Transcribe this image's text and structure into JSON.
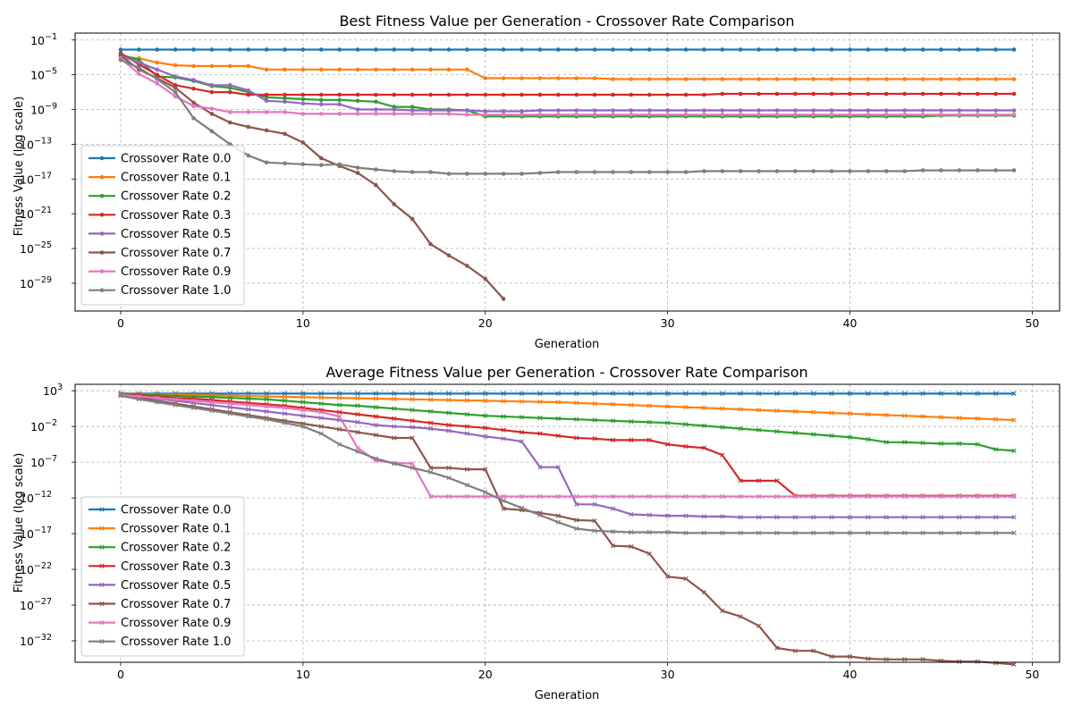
{
  "chart_data": [
    {
      "type": "line",
      "title": "Best Fitness Value per Generation - Crossover Rate Comparison",
      "xlabel": "Generation",
      "ylabel": "Fitness Value (log scale)",
      "yscale": "log",
      "xlim": [
        -2.5,
        51.5
      ],
      "ylim_exp": [
        -32.2,
        -0.2
      ],
      "xticks": [
        0,
        10,
        20,
        30,
        40,
        50
      ],
      "yticks_exp": [
        -1,
        -5,
        -9,
        -13,
        -17,
        -21,
        -25,
        -29
      ],
      "grid": true,
      "legend_position": "lower-left",
      "marker": "circle",
      "series": [
        {
          "name": "Crossover Rate 0.0",
          "color": "#1f77b4",
          "log10_values": [
            -2.1,
            -2.1,
            -2.1,
            -2.1,
            -2.1,
            -2.1,
            -2.1,
            -2.1,
            -2.1,
            -2.1,
            -2.1,
            -2.1,
            -2.1,
            -2.1,
            -2.1,
            -2.1,
            -2.1,
            -2.1,
            -2.1,
            -2.1,
            -2.1,
            -2.1,
            -2.1,
            -2.1,
            -2.1,
            -2.1,
            -2.1,
            -2.1,
            -2.1,
            -2.1,
            -2.1,
            -2.1,
            -2.1,
            -2.1,
            -2.1,
            -2.1,
            -2.1,
            -2.1,
            -2.1,
            -2.1,
            -2.1,
            -2.1,
            -2.1,
            -2.1,
            -2.1,
            -2.1,
            -2.1,
            -2.1,
            -2.1,
            -2.1
          ]
        },
        {
          "name": "Crossover Rate 0.1",
          "color": "#ff7f0e",
          "log10_values": [
            -2.9,
            -3.1,
            -3.6,
            -3.9,
            -4.0,
            -4.0,
            -4.0,
            -4.0,
            -4.4,
            -4.4,
            -4.4,
            -4.4,
            -4.4,
            -4.4,
            -4.4,
            -4.4,
            -4.4,
            -4.4,
            -4.4,
            -4.4,
            -5.4,
            -5.4,
            -5.4,
            -5.4,
            -5.4,
            -5.4,
            -5.4,
            -5.5,
            -5.5,
            -5.5,
            -5.5,
            -5.5,
            -5.5,
            -5.5,
            -5.5,
            -5.5,
            -5.5,
            -5.5,
            -5.5,
            -5.5,
            -5.5,
            -5.5,
            -5.5,
            -5.5,
            -5.5,
            -5.5,
            -5.5,
            -5.5,
            -5.5,
            -5.5
          ]
        },
        {
          "name": "Crossover Rate 0.2",
          "color": "#2ca02c",
          "log10_values": [
            -2.7,
            -3.3,
            -5.2,
            -5.3,
            -5.7,
            -6.3,
            -6.5,
            -7.0,
            -7.6,
            -7.7,
            -7.8,
            -7.9,
            -7.9,
            -8.0,
            -8.1,
            -8.7,
            -8.7,
            -9.0,
            -9.0,
            -9.1,
            -9.8,
            -9.8,
            -9.8,
            -9.8,
            -9.8,
            -9.8,
            -9.8,
            -9.8,
            -9.8,
            -9.8,
            -9.8,
            -9.8,
            -9.8,
            -9.8,
            -9.8,
            -9.8,
            -9.8,
            -9.8,
            -9.8,
            -9.8,
            -9.8,
            -9.8,
            -9.8,
            -9.8,
            -9.8,
            -9.7,
            -9.7,
            -9.7,
            -9.7,
            -9.7
          ]
        },
        {
          "name": "Crossover Rate 0.3",
          "color": "#d62728",
          "log10_values": [
            -2.5,
            -3.8,
            -5.0,
            -6.2,
            -6.6,
            -7.0,
            -7.0,
            -7.3,
            -7.3,
            -7.3,
            -7.3,
            -7.3,
            -7.3,
            -7.3,
            -7.3,
            -7.3,
            -7.3,
            -7.3,
            -7.3,
            -7.3,
            -7.3,
            -7.3,
            -7.3,
            -7.3,
            -7.3,
            -7.3,
            -7.3,
            -7.3,
            -7.3,
            -7.3,
            -7.3,
            -7.3,
            -7.3,
            -7.2,
            -7.2,
            -7.2,
            -7.2,
            -7.2,
            -7.2,
            -7.2,
            -7.2,
            -7.2,
            -7.2,
            -7.2,
            -7.2,
            -7.2,
            -7.2,
            -7.2,
            -7.2,
            -7.2
          ]
        },
        {
          "name": "Crossover Rate 0.5",
          "color": "#9467bd",
          "log10_values": [
            -2.8,
            -3.6,
            -4.4,
            -5.2,
            -5.6,
            -6.2,
            -6.2,
            -6.8,
            -8.0,
            -8.1,
            -8.3,
            -8.4,
            -8.4,
            -9.0,
            -9.0,
            -9.0,
            -9.1,
            -9.1,
            -9.1,
            -9.1,
            -9.2,
            -9.2,
            -9.2,
            -9.1,
            -9.1,
            -9.1,
            -9.1,
            -9.1,
            -9.1,
            -9.1,
            -9.1,
            -9.1,
            -9.1,
            -9.1,
            -9.1,
            -9.1,
            -9.1,
            -9.1,
            -9.1,
            -9.1,
            -9.1,
            -9.1,
            -9.1,
            -9.1,
            -9.1,
            -9.1,
            -9.1,
            -9.1,
            -9.1,
            -9.1
          ]
        },
        {
          "name": "Crossover Rate 0.7",
          "color": "#8c564b",
          "log10_values": [
            -2.8,
            -4.4,
            -5.4,
            -6.5,
            -8.2,
            -9.5,
            -10.5,
            -11.0,
            -11.4,
            -11.8,
            -12.8,
            -14.6,
            -15.5,
            -16.3,
            -17.7,
            -19.9,
            -21.6,
            -24.5,
            -25.8,
            -27.0,
            -28.5,
            -30.8
          ]
        },
        {
          "name": "Crossover Rate 0.9",
          "color": "#e377c2",
          "log10_values": [
            -3.1,
            -4.9,
            -6.0,
            -7.5,
            -8.6,
            -8.9,
            -9.3,
            -9.3,
            -9.3,
            -9.3,
            -9.5,
            -9.5,
            -9.5,
            -9.5,
            -9.5,
            -9.5,
            -9.5,
            -9.5,
            -9.5,
            -9.6,
            -9.6,
            -9.6,
            -9.6,
            -9.6,
            -9.6,
            -9.6,
            -9.6,
            -9.6,
            -9.6,
            -9.6,
            -9.6,
            -9.6,
            -9.6,
            -9.6,
            -9.6,
            -9.6,
            -9.6,
            -9.6,
            -9.6,
            -9.6,
            -9.6,
            -9.6,
            -9.6,
            -9.6,
            -9.6,
            -9.6,
            -9.6,
            -9.6,
            -9.6,
            -9.6
          ]
        },
        {
          "name": "Crossover Rate 1.0",
          "color": "#7f7f7f",
          "log10_values": [
            -3.3,
            -4.2,
            -5.5,
            -7.0,
            -10.0,
            -11.5,
            -13.0,
            -14.3,
            -15.1,
            -15.2,
            -15.3,
            -15.4,
            -15.3,
            -15.7,
            -15.9,
            -16.1,
            -16.2,
            -16.2,
            -16.4,
            -16.4,
            -16.4,
            -16.4,
            -16.4,
            -16.3,
            -16.2,
            -16.2,
            -16.2,
            -16.2,
            -16.2,
            -16.2,
            -16.2,
            -16.2,
            -16.1,
            -16.1,
            -16.1,
            -16.1,
            -16.1,
            -16.1,
            -16.1,
            -16.1,
            -16.1,
            -16.1,
            -16.1,
            -16.1,
            -16.0,
            -16.0,
            -16.0,
            -16.0,
            -16.0,
            -16.0
          ]
        }
      ]
    },
    {
      "type": "line",
      "title": "Average Fitness Value per Generation - Crossover Rate Comparison",
      "xlabel": "Generation",
      "ylabel": "Fitness Value (log scale)",
      "yscale": "log",
      "xlim": [
        -2.5,
        51.5
      ],
      "ylim_exp": [
        -35.0,
        3.9
      ],
      "xticks": [
        0,
        10,
        20,
        30,
        40,
        50
      ],
      "yticks_exp": [
        3,
        -2,
        -7,
        -12,
        -17,
        -22,
        -27,
        -32
      ],
      "grid": true,
      "legend_position": "lower-left",
      "marker": "x",
      "series": [
        {
          "name": "Crossover Rate 0.0",
          "color": "#1f77b4",
          "log10_values": [
            2.6,
            2.6,
            2.6,
            2.6,
            2.6,
            2.6,
            2.6,
            2.6,
            2.6,
            2.6,
            2.6,
            2.6,
            2.6,
            2.6,
            2.6,
            2.6,
            2.6,
            2.6,
            2.6,
            2.6,
            2.6,
            2.6,
            2.6,
            2.6,
            2.6,
            2.6,
            2.6,
            2.6,
            2.6,
            2.6,
            2.6,
            2.6,
            2.6,
            2.6,
            2.6,
            2.6,
            2.6,
            2.6,
            2.6,
            2.6,
            2.6,
            2.6,
            2.6,
            2.6,
            2.6,
            2.6,
            2.6,
            2.6,
            2.6,
            2.6
          ]
        },
        {
          "name": "Crossover Rate 0.1",
          "color": "#ff7f0e",
          "log10_values": [
            2.6,
            2.55,
            2.5,
            2.45,
            2.4,
            2.35,
            2.3,
            2.25,
            2.2,
            2.15,
            2.1,
            2.05,
            2.0,
            1.95,
            1.9,
            1.85,
            1.8,
            1.75,
            1.7,
            1.65,
            1.6,
            1.55,
            1.5,
            1.45,
            1.4,
            1.3,
            1.2,
            1.1,
            1.0,
            0.9,
            0.8,
            0.7,
            0.6,
            0.5,
            0.4,
            0.3,
            0.2,
            0.1,
            0.0,
            -0.1,
            -0.2,
            -0.3,
            -0.4,
            -0.5,
            -0.6,
            -0.7,
            -0.8,
            -0.9,
            -1.0,
            -1.1
          ]
        },
        {
          "name": "Crossover Rate 0.2",
          "color": "#2ca02c",
          "log10_values": [
            2.6,
            2.5,
            2.4,
            2.3,
            2.2,
            2.1,
            2.0,
            1.9,
            1.8,
            1.6,
            1.4,
            1.2,
            1.0,
            0.9,
            0.7,
            0.5,
            0.3,
            0.1,
            -0.1,
            -0.3,
            -0.5,
            -0.6,
            -0.7,
            -0.8,
            -0.9,
            -1.0,
            -1.1,
            -1.2,
            -1.3,
            -1.4,
            -1.5,
            -1.7,
            -1.9,
            -2.1,
            -2.3,
            -2.5,
            -2.7,
            -2.9,
            -3.1,
            -3.3,
            -3.5,
            -3.8,
            -4.2,
            -4.2,
            -4.3,
            -4.4,
            -4.4,
            -4.5,
            -5.2,
            -5.4
          ]
        },
        {
          "name": "Crossover Rate 0.3",
          "color": "#d62728",
          "log10_values": [
            2.5,
            2.4,
            2.2,
            2.0,
            1.9,
            1.7,
            1.5,
            1.3,
            1.1,
            0.9,
            0.6,
            0.3,
            0.0,
            -0.3,
            -0.6,
            -0.9,
            -1.2,
            -1.5,
            -1.8,
            -2.0,
            -2.2,
            -2.5,
            -2.8,
            -3.0,
            -3.3,
            -3.6,
            -3.7,
            -3.9,
            -3.9,
            -3.9,
            -4.5,
            -4.8,
            -5.0,
            -6.0,
            -9.6,
            -9.6,
            -9.6,
            -11.7,
            -11.7,
            -11.7,
            -11.7,
            -11.7,
            -11.7,
            -11.7,
            -11.7,
            -11.7,
            -11.7,
            -11.7,
            -11.7,
            -11.7
          ]
        },
        {
          "name": "Crossover Rate 0.5",
          "color": "#9467bd",
          "log10_values": [
            2.5,
            2.2,
            1.9,
            1.6,
            1.3,
            1.0,
            0.7,
            0.4,
            0.1,
            -0.2,
            -0.5,
            -0.8,
            -1.1,
            -1.4,
            -1.8,
            -2.0,
            -2.1,
            -2.3,
            -2.6,
            -3.0,
            -3.4,
            -3.7,
            -4.1,
            -7.7,
            -7.7,
            -12.9,
            -12.9,
            -13.5,
            -14.3,
            -14.4,
            -14.5,
            -14.5,
            -14.6,
            -14.6,
            -14.7,
            -14.7,
            -14.7,
            -14.7,
            -14.7,
            -14.7,
            -14.7,
            -14.7,
            -14.7,
            -14.7,
            -14.7,
            -14.7,
            -14.7,
            -14.7,
            -14.7,
            -14.7
          ]
        },
        {
          "name": "Crossover Rate 0.7",
          "color": "#8c564b",
          "log10_values": [
            2.4,
            2.0,
            1.6,
            1.2,
            0.8,
            0.4,
            0.0,
            -0.4,
            -0.8,
            -1.2,
            -1.6,
            -2.0,
            -2.4,
            -2.8,
            -3.2,
            -3.6,
            -3.6,
            -7.8,
            -7.8,
            -8.0,
            -8.0,
            -13.5,
            -13.7,
            -14.1,
            -14.5,
            -15.1,
            -15.2,
            -18.7,
            -18.8,
            -19.8,
            -23.0,
            -23.3,
            -25.2,
            -27.8,
            -28.6,
            -29.9,
            -33.0,
            -33.4,
            -33.4,
            -34.2,
            -34.2,
            -34.5,
            -34.6,
            -34.6,
            -34.6,
            -34.8,
            -34.9,
            -34.9,
            -35.1,
            -35.3
          ]
        },
        {
          "name": "Crossover Rate 0.9",
          "color": "#e377c2",
          "log10_values": [
            2.4,
            2.2,
            2.0,
            1.8,
            1.6,
            1.4,
            1.2,
            1.0,
            0.8,
            0.6,
            0.3,
            0.0,
            -0.6,
            -5.0,
            -6.8,
            -7.1,
            -7.2,
            -11.8,
            -11.8,
            -11.8,
            -11.8,
            -11.8,
            -11.8,
            -11.8,
            -11.8,
            -11.8,
            -11.8,
            -11.8,
            -11.8,
            -11.8,
            -11.8,
            -11.8,
            -11.8,
            -11.8,
            -11.8,
            -11.8,
            -11.8,
            -11.8,
            -11.8,
            -11.8,
            -11.8,
            -11.8,
            -11.8,
            -11.8,
            -11.8,
            -11.8,
            -11.8,
            -11.8,
            -11.8,
            -11.8
          ]
        },
        {
          "name": "Crossover Rate 1.0",
          "color": "#7f7f7f",
          "log10_values": [
            2.3,
            1.8,
            1.4,
            1.0,
            0.6,
            0.2,
            -0.2,
            -0.6,
            -1.0,
            -1.5,
            -2.0,
            -3.0,
            -4.5,
            -5.5,
            -6.5,
            -7.2,
            -7.8,
            -8.4,
            -9.2,
            -10.2,
            -11.2,
            -12.4,
            -13.4,
            -14.4,
            -15.4,
            -16.3,
            -16.6,
            -16.7,
            -16.8,
            -16.8,
            -16.8,
            -16.9,
            -16.9,
            -16.9,
            -16.9,
            -16.9,
            -16.9,
            -16.9,
            -16.9,
            -16.9,
            -16.9,
            -16.9,
            -16.9,
            -16.9,
            -16.9,
            -16.9,
            -16.9,
            -16.9,
            -16.9,
            -16.9
          ]
        }
      ]
    }
  ]
}
